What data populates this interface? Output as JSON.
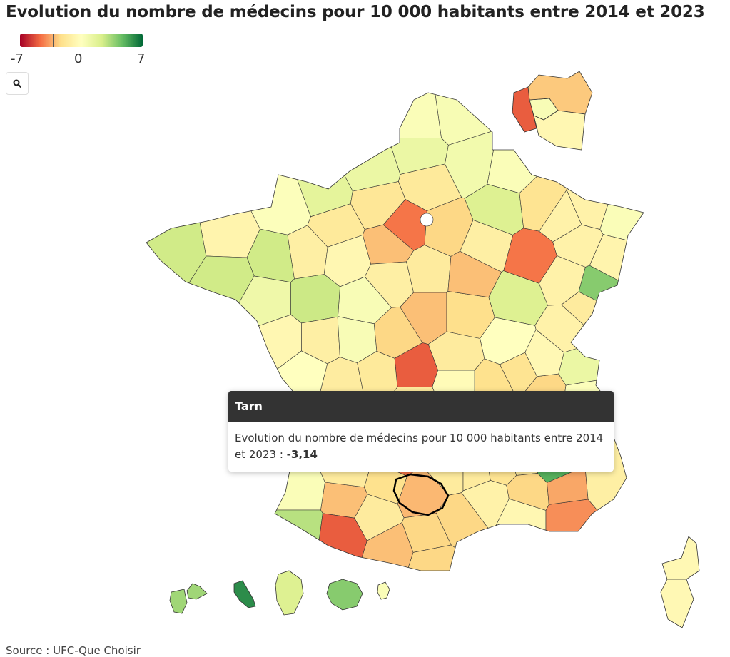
{
  "title": "Evolution du nombre de médecins pour 10 000 habitants entre 2014 et 2023",
  "legend": {
    "min_label": "-7",
    "mid_label": "0",
    "max_label": "7",
    "min": -7,
    "max": 7,
    "marker_value": -3.14,
    "colors": [
      "#a50026",
      "#f46d43",
      "#fee08b",
      "#ffffbf",
      "#d9ef8b",
      "#66bd63",
      "#006837"
    ]
  },
  "zoom_button": {
    "icon": "search-icon"
  },
  "tooltip": {
    "title": "Tarn",
    "text": "Evolution du nombre de médecins pour 10 000 habitants entre 2014 et 2023 : ",
    "value": "-3,14"
  },
  "source": "Source : UFC-Que Choisir",
  "chart_data": {
    "type": "choropleth",
    "title": "Evolution du nombre de médecins pour 10 000 habitants entre 2014 et 2023",
    "value_range": [
      -7,
      7
    ],
    "highlighted": {
      "department": "Tarn",
      "value": -3.14
    },
    "departments_estimated": {
      "59": 0.5,
      "62": 0.3,
      "80": 1.2,
      "02": 0.8,
      "76": 1.2,
      "60": -1.6,
      "08": 0.3,
      "51": 2.0,
      "55": -2.0,
      "57": -1.0,
      "67": 0.3,
      "68": -0.8,
      "54": -1.0,
      "88": -1.0,
      "50": 0.2,
      "14": 1.6,
      "61": -1.6,
      "27": -1.8,
      "78": -4.5,
      "77": -2.5,
      "10": -1.2,
      "52": -4.5,
      "70": -1.0,
      "90": 4.0,
      "25": -1.5,
      "39": -1.0,
      "21": 2.0,
      "89": -3.0,
      "45": -1.5,
      "28": -3.0,
      "72": -0.6,
      "53": -1.2,
      "35": 2.5,
      "22": -0.8,
      "29": 2.5,
      "56": 2.5,
      "44": 1.0,
      "49": 2.6,
      "37": 0.4,
      "41": -1.2,
      "18": -3.0,
      "58": -2.3,
      "71": 0.0,
      "85": -0.6,
      "79": -1.2,
      "86": 0.4,
      "36": -2.5,
      "03": -1.5,
      "01": -0.5,
      "74": 1.2,
      "73": 0.2,
      "69": -2.0,
      "42": -2.2,
      "23": -5.0,
      "87": -1.6,
      "17": 0.0,
      "16": -1.4,
      "63": -0.3,
      "38": -2.5,
      "33": -1.0,
      "40": 0.3,
      "64": 3.0,
      "65": -5.0,
      "32": -3.0,
      "47": -1.5,
      "82": -2.2,
      "31": -1.5,
      "09": -3.0,
      "11": -2.5,
      "66": -2.5,
      "81": -3.14,
      "12": -1.5,
      "34": -2.5,
      "30": -1.0,
      "48": -1.5,
      "84": -2.5,
      "13": -0.6,
      "83": -4.0,
      "04": -3.5,
      "06": -1.2,
      "05": 5.0,
      "26": -1.5,
      "07": -2.0,
      "46": -4.5,
      "15": -1.5,
      "19": -1.5,
      "24": -1.0,
      "2A": -0.5,
      "2B": -0.5,
      "971": 3.5,
      "972": 6.0,
      "973": 2.0,
      "974": 4.0,
      "976": 0.3,
      "75": 0.4,
      "92": -5.0,
      "93": -2.8,
      "94": -0.6
    }
  }
}
